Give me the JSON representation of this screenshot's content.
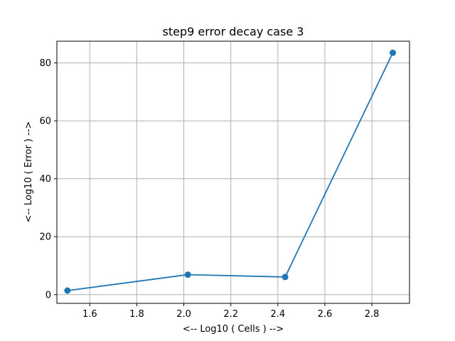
{
  "chart_data": {
    "type": "line",
    "title": "step9 error decay case 3",
    "xlabel": "<-- Log10 ( Cells ) -->",
    "ylabel": "<-- Log10 ( Error ) -->",
    "xlim": [
      1.46,
      2.96
    ],
    "ylim": [
      -3.0,
      87.5
    ],
    "xticks": [
      1.6,
      1.8,
      2.0,
      2.2,
      2.4,
      2.6,
      2.8
    ],
    "xtick_labels": [
      "1.6",
      "1.8",
      "2.0",
      "2.2",
      "2.4",
      "2.6",
      "2.8"
    ],
    "yticks": [
      0,
      20,
      40,
      60,
      80
    ],
    "ytick_labels": [
      "0",
      "20",
      "40",
      "60",
      "80"
    ],
    "grid": true,
    "series": [
      {
        "x": [
          1.505,
          2.017,
          2.431,
          2.889
        ],
        "y": [
          1.4,
          6.9,
          6.1,
          83.5
        ],
        "color": "#1f77b4",
        "marker": "circle"
      }
    ]
  }
}
